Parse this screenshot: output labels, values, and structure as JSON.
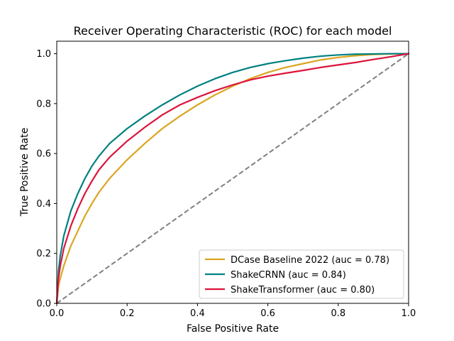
{
  "chart_data": {
    "type": "line",
    "title": "Receiver Operating Characteristic (ROC) for each model",
    "xlabel": "False Positive Rate",
    "ylabel": "True Positive Rate",
    "xlim": [
      0.0,
      1.0
    ],
    "ylim": [
      0.0,
      1.05
    ],
    "xticks": [
      0.0,
      0.2,
      0.4,
      0.6,
      0.8,
      1.0
    ],
    "xtick_labels": [
      "0.0",
      "0.2",
      "0.4",
      "0.6",
      "0.8",
      "1.0"
    ],
    "yticks": [
      0.0,
      0.2,
      0.4,
      0.6,
      0.8,
      1.0
    ],
    "ytick_labels": [
      "0.0",
      "0.2",
      "0.4",
      "0.6",
      "0.8",
      "1.0"
    ],
    "grid": false,
    "legend_position": "lower-right",
    "reference_line": {
      "x": [
        0.0,
        1.0
      ],
      "y": [
        0.0,
        1.0
      ],
      "color": "#808080",
      "style": "dashed"
    },
    "series": [
      {
        "name": "DCase Baseline 2022 (auc = 0.78)",
        "color": "#DAA520",
        "x": [
          0.0,
          0.005,
          0.01,
          0.02,
          0.04,
          0.06,
          0.08,
          0.1,
          0.12,
          0.15,
          0.2,
          0.25,
          0.3,
          0.35,
          0.4,
          0.45,
          0.5,
          0.55,
          0.6,
          0.65,
          0.7,
          0.75,
          0.8,
          0.85,
          0.9,
          0.95,
          1.0
        ],
        "y": [
          0.0,
          0.07,
          0.1,
          0.15,
          0.23,
          0.29,
          0.35,
          0.4,
          0.445,
          0.5,
          0.575,
          0.64,
          0.7,
          0.75,
          0.795,
          0.835,
          0.87,
          0.9,
          0.925,
          0.945,
          0.96,
          0.975,
          0.985,
          0.992,
          0.997,
          0.999,
          1.0
        ]
      },
      {
        "name": "ShakeCRNN (auc = 0.84)",
        "color": "#008080",
        "x": [
          0.0,
          0.005,
          0.01,
          0.02,
          0.04,
          0.06,
          0.08,
          0.1,
          0.12,
          0.15,
          0.2,
          0.25,
          0.3,
          0.35,
          0.4,
          0.45,
          0.5,
          0.55,
          0.6,
          0.65,
          0.7,
          0.75,
          0.8,
          0.85,
          0.9,
          0.95,
          1.0
        ],
        "y": [
          0.0,
          0.13,
          0.19,
          0.27,
          0.37,
          0.44,
          0.5,
          0.55,
          0.59,
          0.64,
          0.7,
          0.75,
          0.795,
          0.835,
          0.87,
          0.9,
          0.925,
          0.945,
          0.96,
          0.972,
          0.982,
          0.99,
          0.995,
          0.998,
          0.999,
          1.0,
          1.0
        ]
      },
      {
        "name": "ShakeTransformer (auc = 0.80)",
        "color": "#DC143C",
        "x": [
          0.0,
          0.005,
          0.01,
          0.02,
          0.04,
          0.06,
          0.08,
          0.1,
          0.12,
          0.15,
          0.2,
          0.25,
          0.3,
          0.35,
          0.4,
          0.45,
          0.5,
          0.55,
          0.6,
          0.65,
          0.7,
          0.75,
          0.8,
          0.85,
          0.9,
          0.95,
          1.0
        ],
        "y": [
          0.0,
          0.1,
          0.15,
          0.22,
          0.31,
          0.38,
          0.44,
          0.49,
          0.535,
          0.585,
          0.65,
          0.705,
          0.755,
          0.795,
          0.825,
          0.852,
          0.875,
          0.895,
          0.91,
          0.922,
          0.933,
          0.945,
          0.955,
          0.965,
          0.977,
          0.988,
          1.0
        ]
      }
    ]
  }
}
